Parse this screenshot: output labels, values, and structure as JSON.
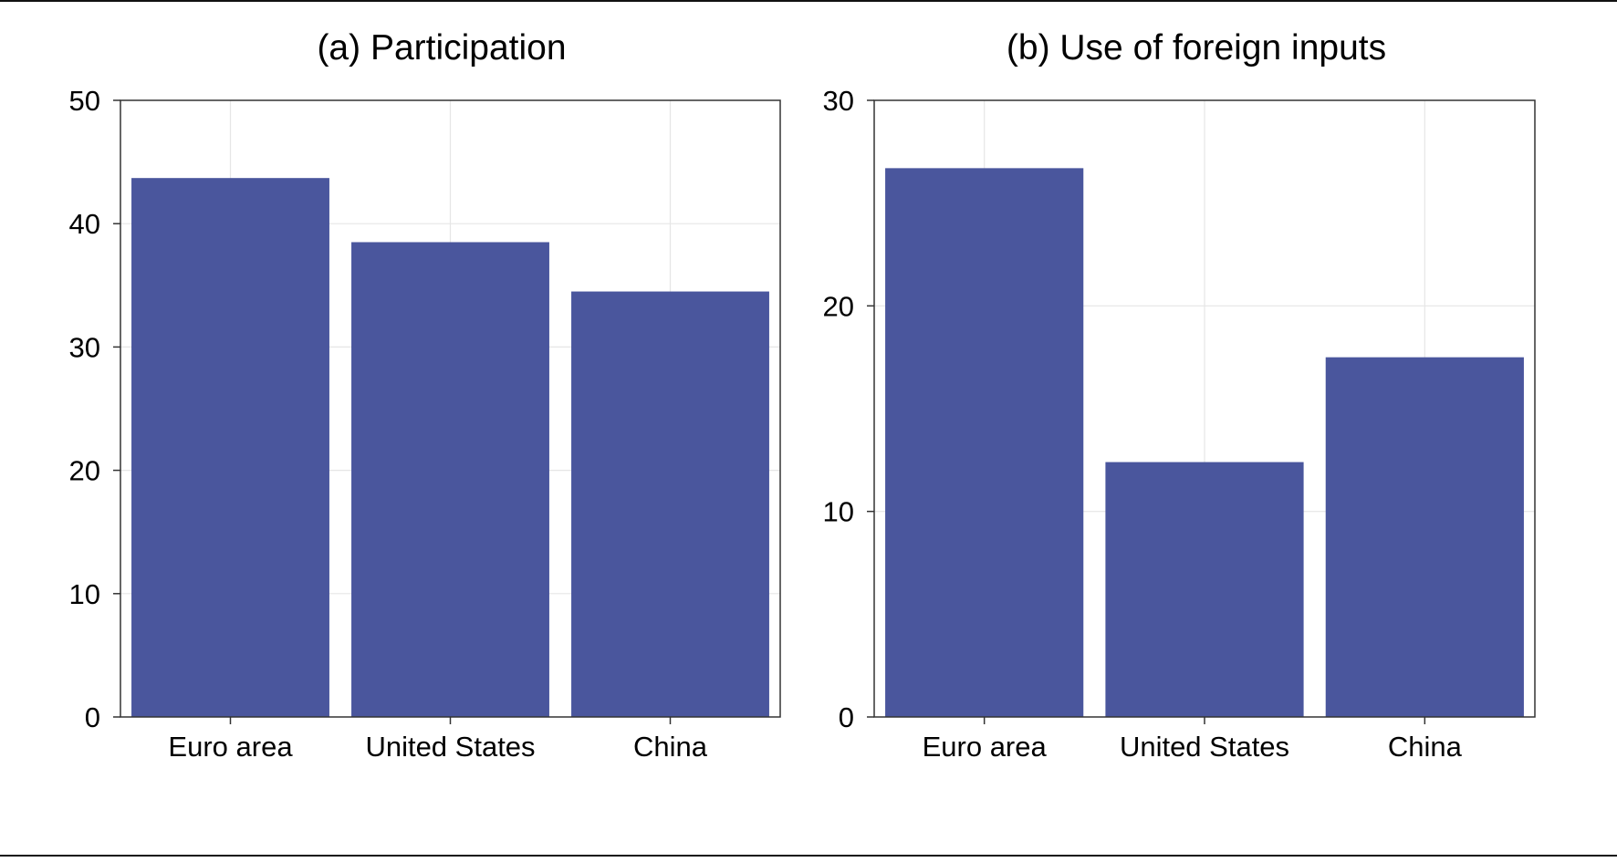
{
  "colors": {
    "bar": "#4a569d",
    "grid": "#e6e6e6",
    "frame": "#333333"
  },
  "chart_data": [
    {
      "type": "bar",
      "title": "(a) Participation",
      "categories": [
        "Euro area",
        "United States",
        "China"
      ],
      "values": [
        43.7,
        38.5,
        34.5
      ],
      "ylim": [
        0,
        50
      ],
      "yticks": [
        0,
        10,
        20,
        30,
        40,
        50
      ],
      "xlabel": "",
      "ylabel": "",
      "grid": true
    },
    {
      "type": "bar",
      "title": "(b) Use of foreign inputs",
      "categories": [
        "Euro area",
        "United States",
        "China"
      ],
      "values": [
        26.7,
        12.4,
        17.5
      ],
      "ylim": [
        0,
        30
      ],
      "yticks": [
        0,
        10,
        20,
        30
      ],
      "xlabel": "",
      "ylabel": "",
      "grid": true
    }
  ]
}
